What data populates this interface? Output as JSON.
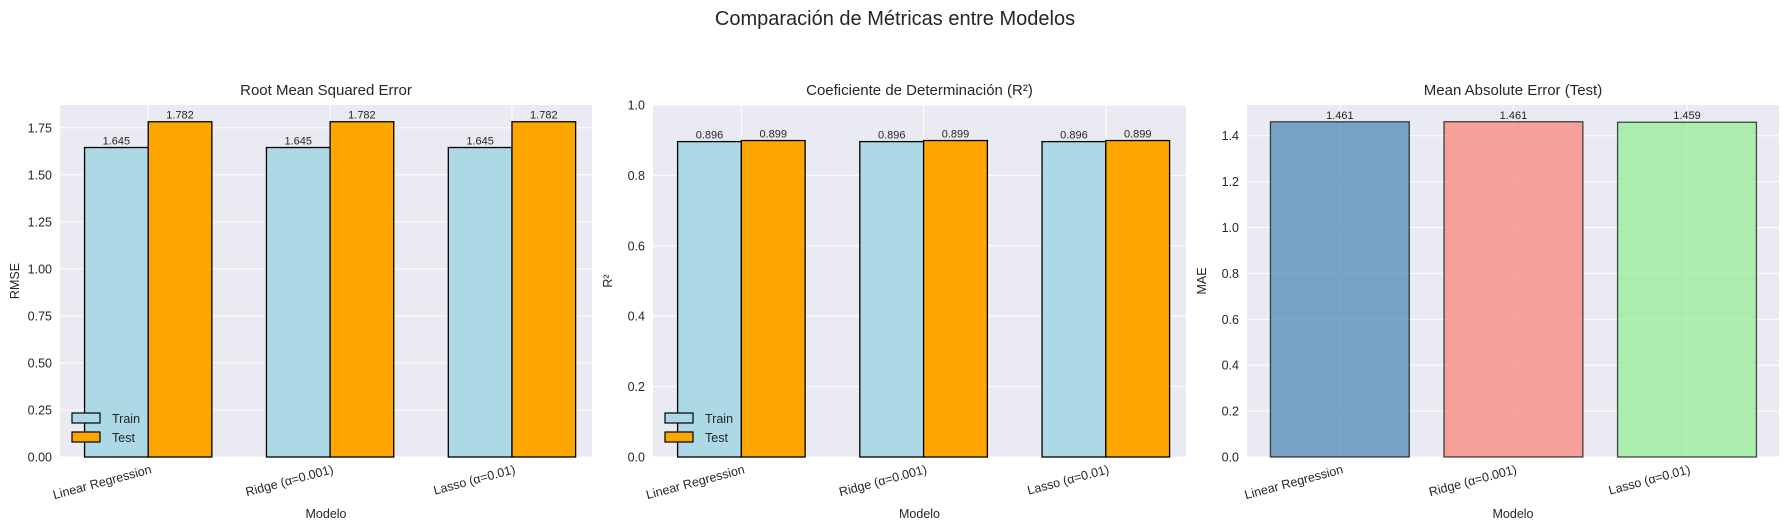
{
  "suptitle": "Comparación de Métricas entre Modelos",
  "chart_data": [
    {
      "type": "bar",
      "title": "Root Mean Squared Error",
      "xlabel": "Modelo",
      "ylabel": "RMSE",
      "categories": [
        "Linear Regression",
        "Ridge (α=0.001)",
        "Lasso (α=0.01)"
      ],
      "series": [
        {
          "name": "Train",
          "values": [
            1.645,
            1.645,
            1.645
          ],
          "color": "#add8e6"
        },
        {
          "name": "Test",
          "values": [
            1.782,
            1.782,
            1.782
          ],
          "color": "#ffa500"
        }
      ],
      "data_labels": [
        [
          "1.645",
          "1.645",
          "1.645"
        ],
        [
          "1.782",
          "1.782",
          "1.782"
        ]
      ],
      "ylim": [
        0,
        1.871
      ],
      "yticks": [
        0.0,
        0.25,
        0.5,
        0.75,
        1.0,
        1.25,
        1.5,
        1.75
      ],
      "ytick_labels": [
        "0.00",
        "0.25",
        "0.50",
        "0.75",
        "1.00",
        "1.25",
        "1.50",
        "1.75"
      ],
      "grid": true,
      "legend": "lower-left"
    },
    {
      "type": "bar",
      "title": "Coeficiente de Determinación (R²)",
      "xlabel": "Modelo",
      "ylabel": "R²",
      "categories": [
        "Linear Regression",
        "Ridge (α=0.001)",
        "Lasso (α=0.01)"
      ],
      "series": [
        {
          "name": "Train",
          "values": [
            0.896,
            0.896,
            0.896
          ],
          "color": "#add8e6"
        },
        {
          "name": "Test",
          "values": [
            0.899,
            0.899,
            0.899
          ],
          "color": "#ffa500"
        }
      ],
      "data_labels": [
        [
          "0.896",
          "0.896",
          "0.896"
        ],
        [
          "0.899",
          "0.899",
          "0.899"
        ]
      ],
      "ylim": [
        0,
        1.0
      ],
      "yticks": [
        0.0,
        0.2,
        0.4,
        0.6,
        0.8,
        1.0
      ],
      "ytick_labels": [
        "0.0",
        "0.2",
        "0.4",
        "0.6",
        "0.8",
        "1.0"
      ],
      "grid": true,
      "legend": "lower-left"
    },
    {
      "type": "bar",
      "title": "Mean Absolute Error (Test)",
      "xlabel": "Modelo",
      "ylabel": "MAE",
      "categories": [
        "Linear Regression",
        "Ridge (α=0.001)",
        "Lasso (α=0.01)"
      ],
      "series": [
        {
          "name": "MAE",
          "values": [
            1.461,
            1.461,
            1.459
          ],
          "colors": [
            "#4682b4",
            "#fa8072",
            "#90ee90"
          ]
        }
      ],
      "data_labels": [
        [
          "1.461",
          "1.461",
          "1.459"
        ]
      ],
      "ylim": [
        0,
        1.534
      ],
      "yticks": [
        0.0,
        0.2,
        0.4,
        0.6,
        0.8,
        1.0,
        1.2,
        1.4
      ],
      "ytick_labels": [
        "0.0",
        "0.2",
        "0.4",
        "0.6",
        "0.8",
        "1.0",
        "1.2",
        "1.4"
      ],
      "grid": true,
      "legend": "none"
    }
  ]
}
